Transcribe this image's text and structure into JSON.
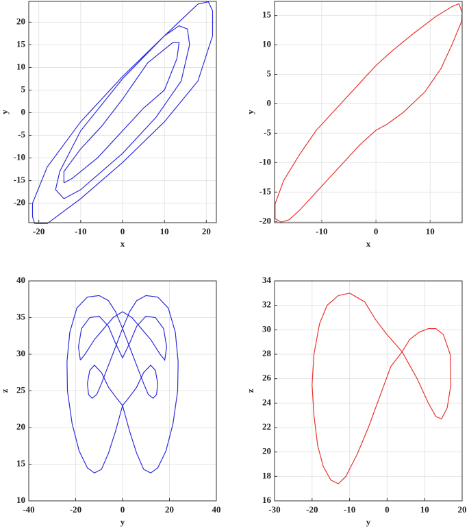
{
  "chart_data": [
    {
      "type": "line",
      "xlabel": "x",
      "ylabel": "y",
      "xlim": [
        -22.4,
        22.4
      ],
      "ylim": [
        -24.3,
        24.6
      ],
      "xticks": [
        -20,
        -10,
        0,
        10,
        20
      ],
      "yticks": [
        -20,
        -15,
        -10,
        -5,
        0,
        5,
        10,
        15,
        20
      ],
      "grid": true,
      "series": [
        {
          "color": "#2b2bdc",
          "x": [
            -21,
            -18,
            -10,
            0,
            10,
            18,
            21.5,
            21.5,
            20.5,
            18,
            10,
            0,
            -10,
            -18,
            -21.5,
            -21.5,
            -21,
            null,
            -14,
            -10,
            0,
            8,
            14,
            16,
            15.5,
            13.5,
            10,
            0,
            -10,
            -15,
            -16,
            -14,
            null,
            -14,
            -12,
            -6,
            0,
            5,
            10,
            13,
            13.5,
            12,
            6,
            0,
            -5,
            -10,
            -14,
            -14
          ],
          "values": [
            -24.5,
            -24.5,
            -19,
            -11,
            -2,
            7,
            17,
            22.5,
            24.5,
            24,
            17,
            8,
            -2,
            -12,
            -20,
            -23,
            -24.5,
            null,
            -19,
            -17,
            -9,
            -1,
            7,
            15,
            18.5,
            19.2,
            17,
            7.5,
            -4,
            -13,
            -17,
            -19,
            null,
            -15.5,
            -14.5,
            -10,
            -4,
            1,
            5,
            12,
            15.5,
            15.5,
            11,
            3,
            -3,
            -8,
            -13,
            -15.5
          ]
        }
      ]
    },
    {
      "type": "line",
      "xlabel": "x",
      "ylabel": "y",
      "xlim": [
        -18.7,
        15.9
      ],
      "ylim": [
        -20.2,
        17.4
      ],
      "xticks": [
        -10,
        0,
        10
      ],
      "yticks": [
        -20,
        -15,
        -10,
        -5,
        0,
        5,
        10,
        15
      ],
      "grid": true,
      "series": [
        {
          "color": "#e8322e",
          "x": [
            15.8,
            14,
            12,
            9,
            5,
            2,
            0,
            -3,
            -6,
            -10,
            -14,
            -16,
            -17.5,
            -18.6,
            -18.6,
            -17,
            -14,
            -11,
            -8,
            -5,
            -2,
            0,
            3,
            7,
            11,
            14,
            15.3,
            15.9,
            15.8
          ],
          "values": [
            14,
            10,
            6,
            2,
            -1.5,
            -3.5,
            -4.5,
            -7,
            -10,
            -14,
            -18,
            -19.7,
            -20.1,
            -19.5,
            -17,
            -13,
            -8.5,
            -4.5,
            -1.5,
            1.5,
            4.5,
            6.5,
            9,
            12,
            14.8,
            16.5,
            17,
            15.5,
            14
          ]
        }
      ]
    },
    {
      "type": "line",
      "xlabel": "y",
      "ylabel": "z",
      "xlim": [
        -40,
        40
      ],
      "ylim": [
        10,
        40
      ],
      "xticks": [
        -40,
        -20,
        0,
        20,
        40
      ],
      "yticks": [
        10,
        15,
        20,
        25,
        30,
        35,
        40
      ],
      "grid": true,
      "series": [
        {
          "color": "#2b2bdc",
          "x": [
            0,
            -3,
            -6,
            -9,
            -12,
            -15,
            -18.5,
            -21.5,
            -23.5,
            -23.7,
            -22.5,
            -19.5,
            -15,
            -10,
            -6,
            -3,
            0,
            3,
            6,
            9,
            11,
            13,
            14.5,
            15,
            14,
            12,
            9,
            6,
            3,
            0,
            3,
            6,
            9,
            12,
            15,
            18.5,
            21.5,
            23.5,
            23.7,
            22.5,
            19.5,
            15,
            10,
            6,
            3,
            0,
            -3,
            -6,
            -9,
            -11,
            -13,
            -14.5,
            -15,
            -14,
            -12,
            -9,
            -6,
            -3,
            0,
            null,
            -18,
            -18.8,
            -17.5,
            -14,
            -10,
            -6,
            -3,
            0,
            3,
            6,
            10,
            14,
            17.5,
            18.8,
            18,
            16,
            12,
            8,
            4,
            0,
            -4,
            -8,
            -12,
            -16,
            -18
          ],
          "values": [
            23,
            19.5,
            16.5,
            14.3,
            13.8,
            14.5,
            16.8,
            20.5,
            25,
            29,
            33,
            36.3,
            37.8,
            38,
            37.3,
            35.8,
            33.5,
            31,
            28.5,
            26,
            24.5,
            24,
            24.5,
            26,
            27.8,
            28.5,
            27.5,
            25.5,
            24.2,
            23,
            19.5,
            16.5,
            14.3,
            13.8,
            14.5,
            16.8,
            20.5,
            25,
            29,
            33,
            36.3,
            37.8,
            38,
            37.3,
            35.8,
            33.5,
            31,
            28.5,
            26,
            24.5,
            24,
            24.5,
            26,
            27.8,
            28.5,
            27.5,
            25.5,
            24.2,
            23,
            null,
            29.2,
            31,
            33.5,
            35,
            35.2,
            33.8,
            31.5,
            29.5,
            31.5,
            33.8,
            35.2,
            35,
            33.5,
            31,
            29.2,
            30,
            32,
            33.5,
            35,
            35.8,
            35,
            33.5,
            32,
            30,
            29.2
          ]
        }
      ]
    },
    {
      "type": "line",
      "xlabel": "y",
      "ylabel": "z",
      "xlim": [
        -30,
        20
      ],
      "ylim": [
        16,
        34
      ],
      "xticks": [
        -30,
        -20,
        -10,
        0,
        10,
        20
      ],
      "yticks": [
        16,
        18,
        20,
        22,
        24,
        26,
        28,
        30,
        32,
        34
      ],
      "grid": true,
      "series": [
        {
          "color": "#e8322e",
          "x": [
            -10,
            -6,
            -3,
            0,
            4,
            8,
            11,
            13,
            14.5,
            16,
            17,
            16.8,
            15,
            13,
            11,
            8.5,
            6,
            4,
            1,
            -2,
            -5,
            -8,
            -11,
            -13,
            -15,
            -17,
            -18.5,
            -19.5,
            -20,
            -19.5,
            -18,
            -16,
            -13,
            -10
          ],
          "values": [
            33,
            32.3,
            30.8,
            29.6,
            28.2,
            26,
            24,
            22.9,
            22.7,
            23.6,
            25.5,
            28,
            29.6,
            30.1,
            30.1,
            29.8,
            29.2,
            28.2,
            27,
            24.5,
            22,
            19.8,
            18,
            17.4,
            17.7,
            18.8,
            20.5,
            23,
            25.5,
            28,
            30.5,
            32,
            32.8,
            33
          ]
        }
      ]
    }
  ]
}
